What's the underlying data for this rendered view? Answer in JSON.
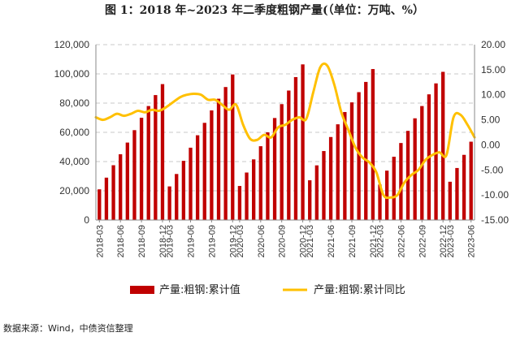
{
  "chart_data": {
    "type": "bar+line",
    "title": "图 1：2018 年~2023 年二季度粗钢产量(（单位：万吨、%）",
    "categories": [
      "2018-03",
      "2018-04",
      "2018-05",
      "2018-06",
      "2018-07",
      "2018-08",
      "2018-09",
      "2018-10",
      "2018-11",
      "2018-12",
      "2019-03",
      "2019-04",
      "2019-05",
      "2019-06",
      "2019-07",
      "2019-08",
      "2019-09",
      "2019-10",
      "2019-11",
      "2019-12",
      "2020-03",
      "2020-04",
      "2020-05",
      "2020-06",
      "2020-07",
      "2020-08",
      "2020-09",
      "2020-10",
      "2020-11",
      "2020-12",
      "2021-03",
      "2021-04",
      "2021-05",
      "2021-06",
      "2021-07",
      "2021-08",
      "2021-09",
      "2021-10",
      "2021-11",
      "2021-12",
      "2022-03",
      "2022-04",
      "2022-05",
      "2022-06",
      "2022-07",
      "2022-08",
      "2022-09",
      "2022-10",
      "2022-11",
      "2022-12",
      "2023-03",
      "2023-04",
      "2023-05",
      "2023-06"
    ],
    "x_tick_labels": [
      "2018-03",
      "2018-06",
      "2018-09",
      "2018-12",
      "2019-03",
      "2019-06",
      "2019-09",
      "2019-12",
      "2020-03",
      "2020-06",
      "2020-09",
      "2020-12",
      "2021-03",
      "2021-06",
      "2021-09",
      "2021-12",
      "2022-03",
      "2022-06",
      "2022-09",
      "2022-12",
      "2023-03",
      "2023-06"
    ],
    "series": [
      {
        "name": "产量:粗钢:累计值",
        "type": "bar",
        "axis": "left",
        "color": "#c00000",
        "values": [
          21000,
          29000,
          37500,
          45000,
          53000,
          61500,
          70000,
          78000,
          85500,
          93000,
          23000,
          31500,
          40500,
          49500,
          58000,
          66500,
          75000,
          83000,
          91000,
          99600,
          23300,
          32500,
          41500,
          50500,
          60000,
          69800,
          79300,
          88600,
          97800,
          106500,
          27200,
          37400,
          47200,
          56800,
          65500,
          73900,
          80500,
          87500,
          94500,
          103300,
          24300,
          33800,
          43300,
          52700,
          61000,
          69600,
          78000,
          86000,
          93500,
          101400,
          26200,
          35600,
          44600,
          53600
        ]
      },
      {
        "name": "产量:粗钢:累计同比",
        "type": "line",
        "axis": "right",
        "color": "#ffc000",
        "x_positions": [
          -0.5,
          0.5,
          1.5,
          2.5,
          3.5,
          4.5,
          5.5,
          6.5,
          7.5,
          8.5,
          9.5,
          11.5,
          12.5,
          13.5,
          14.5,
          15.5,
          16.5,
          17.5,
          18.5,
          19.5,
          20.5,
          21.5,
          22.5,
          23.5,
          24.5,
          25.5,
          26.5,
          27.5,
          28.5,
          29.5,
          30.5,
          31.5,
          32.5,
          33.5,
          34.5,
          35.5,
          36.5,
          37.5,
          38.5,
          39.5,
          40.5,
          41.5,
          42.5,
          43.5,
          44.5,
          45.5,
          46.5,
          47.5,
          48.5,
          49.5,
          50.5,
          51.5,
          52.5,
          53.5
        ],
        "values": [
          5.5,
          5.0,
          5.5,
          6.2,
          5.8,
          6.2,
          6.8,
          6.5,
          7.0,
          6.8,
          7.5,
          9.5,
          10.0,
          10.2,
          10.0,
          9.0,
          9.0,
          8.0,
          7.0,
          8.0,
          4.0,
          1.2,
          1.0,
          2.0,
          1.5,
          3.5,
          4.0,
          5.0,
          5.5,
          5.2,
          10.5,
          15.5,
          15.8,
          12.0,
          6.5,
          3.0,
          -0.5,
          -2.5,
          -3.5,
          -5.5,
          -10.0,
          -10.5,
          -10.0,
          -7.5,
          -6.0,
          -5.0,
          -3.0,
          -2.0,
          -1.5,
          -2.0,
          5.5,
          6.0,
          4.0,
          1.5
        ]
      }
    ],
    "left_axis": {
      "ylim": [
        0,
        120000
      ],
      "ticks": [
        "0",
        "20,000",
        "40,000",
        "60,000",
        "80,000",
        "100,000",
        "120,000"
      ]
    },
    "right_axis": {
      "ylim": [
        -15,
        20
      ],
      "ticks": [
        "-15.00",
        "-10.00",
        "-5.00",
        "0.00",
        "5.00",
        "10.00",
        "15.00",
        "20.00"
      ]
    },
    "grid": true,
    "legend": {
      "position": "bottom",
      "entries": [
        "产量:粗钢:累计值",
        "产量:粗钢:累计同比"
      ]
    }
  },
  "source_note": "数据来源：Wind，中债资信整理"
}
